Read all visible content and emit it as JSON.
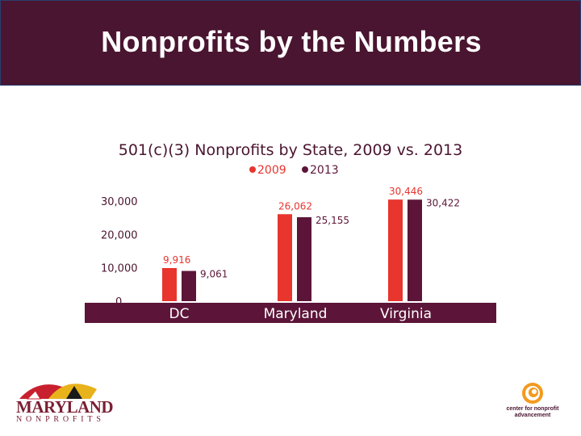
{
  "header": {
    "title": "Nonprofits by the Numbers"
  },
  "colors": {
    "header_bg": "#4a1530",
    "series_2009": "#e8352e",
    "series_2013": "#5c1538",
    "axis_band": "#5c1538"
  },
  "chart_data": {
    "type": "bar",
    "title": "501(c)(3) Nonprofits by State, 2009 vs. 2013",
    "xlabel": "",
    "ylabel": "",
    "categories": [
      "DC",
      "Maryland",
      "Virginia"
    ],
    "series": [
      {
        "name": "2009",
        "values": [
          9916,
          26062,
          30446
        ],
        "labels": [
          "9,916",
          "26,062",
          "30,446"
        ],
        "color": "#e8352e"
      },
      {
        "name": "2013",
        "values": [
          9061,
          25155,
          30422
        ],
        "labels": [
          "9,061",
          "25,155",
          "30,422"
        ],
        "color": "#5c1538"
      }
    ],
    "ylim": [
      0,
      30000
    ],
    "yticks": [
      0,
      10000,
      20000,
      30000
    ],
    "ytick_labels": [
      "0",
      "10,000",
      "20,000",
      "30,000"
    ],
    "grid": false,
    "legend_position": "top-center"
  },
  "logos": {
    "left": {
      "name": "MARYLAND",
      "sub": "NONPROFITS",
      "icon": "maryland-flag-mark-icon"
    },
    "right": {
      "name": "center for nonprofit advancement",
      "icon": "orange-spiral-icon"
    }
  }
}
